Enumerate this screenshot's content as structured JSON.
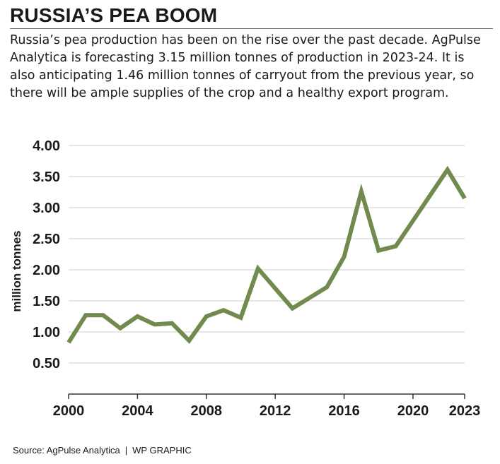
{
  "header": {
    "title": "RUSSIA’S PEA BOOM",
    "description": "Russia’s pea production has been on the rise over the past decade. AgPulse Analytica is forecasting 3.15 million tonnes of production in 2023-24. It is also anticipating 1.46 million tonnes of carryout from the previous year, so there will be ample supplies of the crop and a healthy export program."
  },
  "footer": {
    "source": "Source: AgPulse Analytica",
    "separator": "|",
    "credit": "WP GRAPHIC"
  },
  "chart_data": {
    "type": "line",
    "title": "",
    "xlabel": "",
    "ylabel": "million tonnes",
    "x": [
      2000,
      2001,
      2002,
      2003,
      2004,
      2005,
      2006,
      2007,
      2008,
      2009,
      2010,
      2011,
      2012,
      2013,
      2014,
      2015,
      2016,
      2017,
      2018,
      2019,
      2020,
      2021,
      2022,
      2023
    ],
    "series": [
      {
        "values": [
          0.83,
          1.27,
          1.27,
          1.06,
          1.25,
          1.12,
          1.14,
          0.86,
          1.25,
          1.35,
          1.23,
          2.02,
          1.7,
          1.38,
          1.55,
          1.72,
          2.21,
          3.26,
          2.31,
          2.38,
          2.79,
          3.2,
          3.61,
          3.15
        ],
        "color": "#718b4e"
      }
    ],
    "xlim": [
      2000,
      2023
    ],
    "ylim": [
      0,
      4.0
    ],
    "x_ticks": [
      "2000",
      "2004",
      "2008",
      "2012",
      "2016",
      "2020",
      "2023"
    ],
    "y_ticks": [
      "0.50",
      "1.00",
      "1.50",
      "2.00",
      "2.50",
      "3.00",
      "3.50",
      "4.00"
    ],
    "grid": true,
    "legend": "none"
  }
}
